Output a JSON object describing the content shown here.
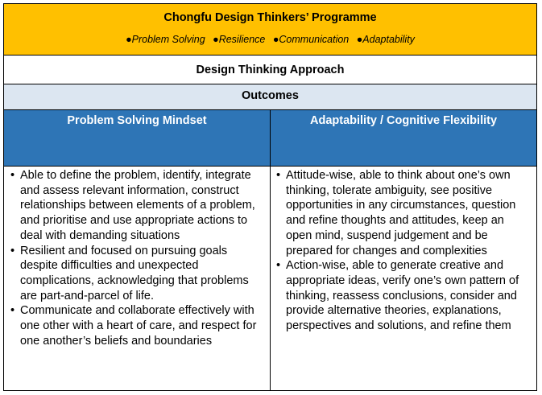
{
  "title": {
    "heading": "Chongfu Design Thinkers’ Programme",
    "tags": [
      "Problem Solving",
      "Resilience",
      "Communication",
      "Adaptability"
    ],
    "tag_bullet": "●"
  },
  "approach": "Design Thinking Approach",
  "outcomes": "Outcomes",
  "columns": [
    {
      "header": "Problem Solving Mindset",
      "items": [
        "Able to define the problem, identify, integrate and assess relevant information, construct relationships between elements of a problem, and prioritise and use appropriate actions to deal with demanding situations",
        "Resilient and focused on pursuing goals despite difficulties and unexpected complications, acknowledging that problems are part-and-parcel of life.",
        "Communicate and collaborate effectively with one other with a heart of care, and respect for one another’s beliefs and boundaries"
      ]
    },
    {
      "header": "Adaptability / Cognitive Flexibility",
      "items": [
        "Attitude-wise, able to think about one’s own thinking,  tolerate ambiguity, see positive opportunities in any circumstances, question and refine thoughts and attitudes, keep an open mind, suspend judgement and be prepared for changes and complexities",
        "Action-wise, able to generate creative and appropriate ideas, verify one’s own pattern of thinking, reassess conclusions, consider and provide alternative theories, explanations, perspectives and solutions, and refine them"
      ]
    }
  ],
  "list_bullet": "•",
  "colors": {
    "title_bg": "#ffc000",
    "outcomes_bg": "#dce6f1",
    "header_bg": "#2e75b6",
    "header_text": "#ffffff"
  }
}
